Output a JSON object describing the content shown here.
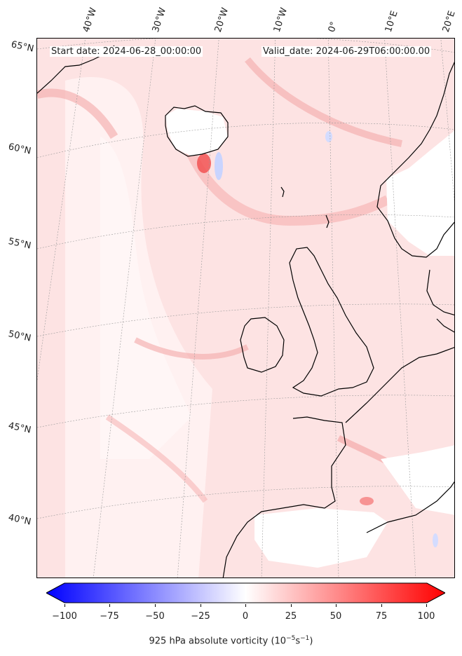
{
  "header": {
    "start_date": "Start date: 2024-06-28_00:00:00",
    "valid_date": "Valid_date: 2024-06-29T06:00:00.00"
  },
  "latitude_labels": [
    "65°N",
    "60°N",
    "55°N",
    "50°N",
    "45°N",
    "40°N"
  ],
  "longitude_labels": [
    "40°W",
    "30°W",
    "20°W",
    "10°W",
    "0°",
    "10°E",
    "20°E"
  ],
  "colorbar": {
    "ticks": [
      "−100",
      "−75",
      "−50",
      "−25",
      "0",
      "25",
      "50",
      "75",
      "100"
    ],
    "label_prefix": "925 hPa absolute vorticity (10",
    "label_exp1": "−5",
    "label_mid": "s",
    "label_exp2": "−1",
    "label_suffix": ")",
    "min_color": "#0000ff",
    "mid_color": "#ffffff",
    "max_color": "#ff0000"
  },
  "colors": {
    "background_field": "#fde3e3",
    "strong_positive": "#f25252",
    "negative": "#c9d4ff",
    "coastline": "#000000",
    "gridline": "#9a9a9a"
  }
}
